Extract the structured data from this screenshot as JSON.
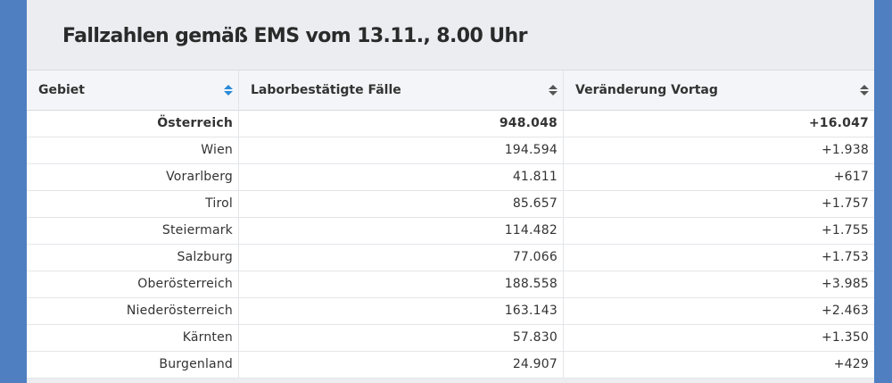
{
  "title": "Fallzahlen gemäß EMS vom 13.11., 8.00 Uhr",
  "columns": [
    "Gebiet",
    "Laborbestätigte Fälle",
    "Veränderung Vortag"
  ],
  "rows": [
    {
      "gebiet": "Österreich",
      "faelle": "948.048",
      "veraenderung": "+16.047"
    },
    {
      "gebiet": "Wien",
      "faelle": "194.594",
      "veraenderung": "+1.938"
    },
    {
      "gebiet": "Vorarlberg",
      "faelle": "41.811",
      "veraenderung": "+617"
    },
    {
      "gebiet": "Tirol",
      "faelle": "85.657",
      "veraenderung": "+1.757"
    },
    {
      "gebiet": "Steiermark",
      "faelle": "114.482",
      "veraenderung": "+1.755"
    },
    {
      "gebiet": "Salzburg",
      "faelle": "77.066",
      "veraenderung": "+1.753"
    },
    {
      "gebiet": "Oberösterreich",
      "faelle": "188.558",
      "veraenderung": "+3.985"
    },
    {
      "gebiet": "Niederösterreich",
      "faelle": "163.143",
      "veraenderung": "+2.463"
    },
    {
      "gebiet": "Kärnten",
      "faelle": "57.830",
      "veraenderung": "+1.350"
    },
    {
      "gebiet": "Burgenland",
      "faelle": "24.907",
      "veraenderung": "+429"
    }
  ],
  "colors": {
    "page_background": "#4f7fc0",
    "active_sort": "#2a8ad6"
  },
  "sort_state": {
    "active_column": "Gebiet"
  }
}
